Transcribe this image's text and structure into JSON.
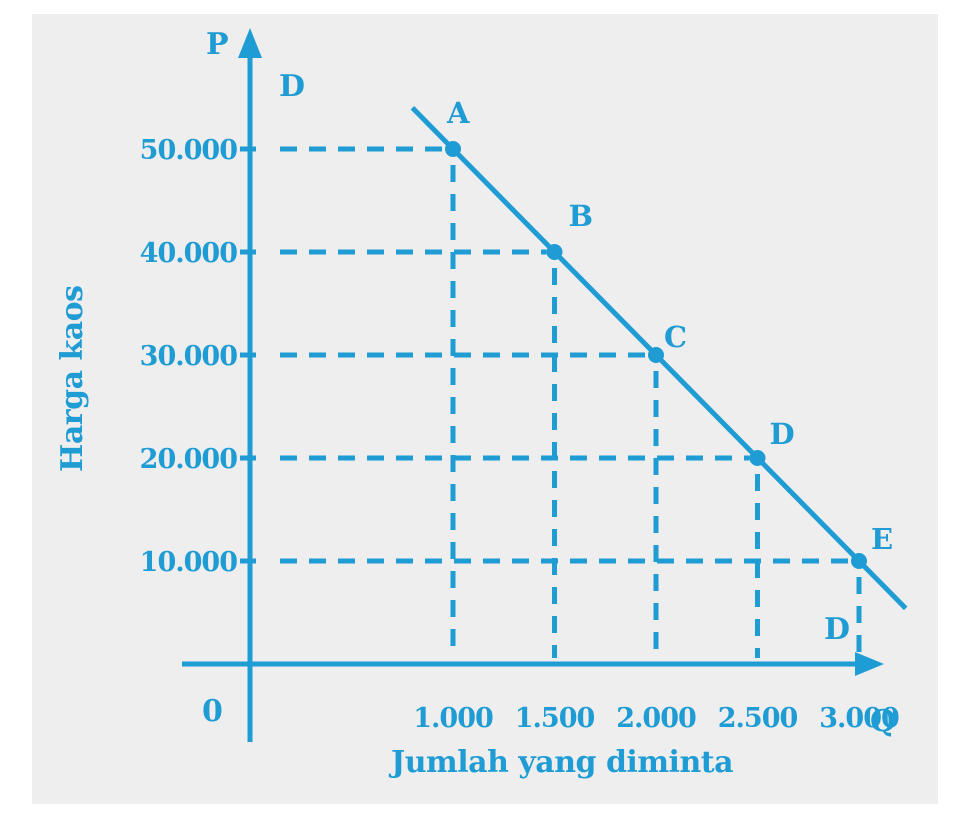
{
  "colors": {
    "ink": "#1f9cd4",
    "background": "#eeeeee"
  },
  "chart_data": {
    "type": "line",
    "title": "",
    "xlabel": "Jumlah yang diminta",
    "ylabel": "Harga kaos",
    "x_axis_symbol": "Q",
    "y_axis_symbol": "P",
    "origin_label": "0",
    "curve_label": "D",
    "x_ticks": [
      {
        "value": 1000,
        "label": "1.000"
      },
      {
        "value": 1500,
        "label": "1.500"
      },
      {
        "value": 2000,
        "label": "2.000"
      },
      {
        "value": 2500,
        "label": "2.500"
      },
      {
        "value": 3000,
        "label": "3.000"
      }
    ],
    "y_ticks": [
      {
        "value": 10000,
        "label": "10.000"
      },
      {
        "value": 20000,
        "label": "20.000"
      },
      {
        "value": 30000,
        "label": "30.000"
      },
      {
        "value": 40000,
        "label": "40.000"
      },
      {
        "value": 50000,
        "label": "50.000"
      }
    ],
    "xlim": [
      0,
      3300
    ],
    "ylim": [
      0,
      55000
    ],
    "series": [
      {
        "points": [
          {
            "label": "A",
            "x": 1000,
            "y": 50000
          },
          {
            "label": "B",
            "x": 1500,
            "y": 40000
          },
          {
            "label": "C",
            "x": 2000,
            "y": 30000
          },
          {
            "label": "D",
            "x": 2500,
            "y": 20000
          },
          {
            "label": "E",
            "x": 3000,
            "y": 10000
          }
        ]
      }
    ],
    "grid": "dashed projection lines"
  }
}
